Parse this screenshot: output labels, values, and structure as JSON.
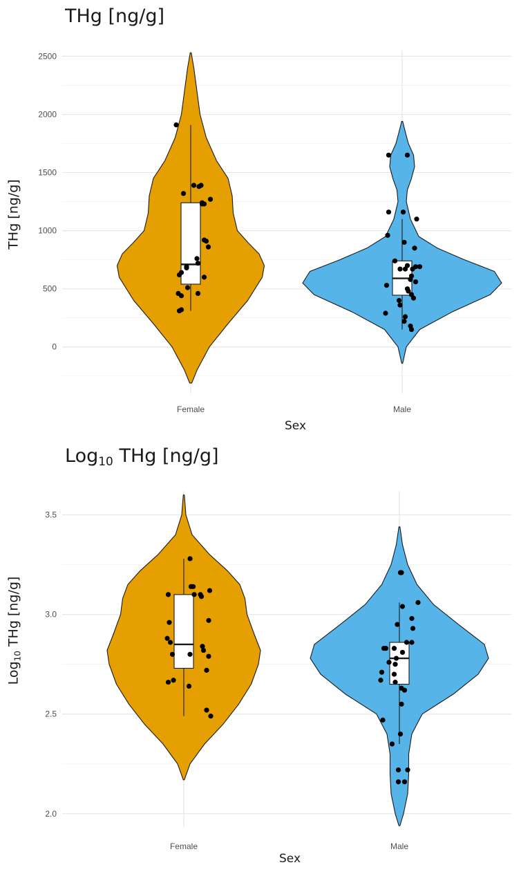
{
  "chart_data": [
    {
      "type": "violin",
      "title": "THg [ng/g]",
      "xlabel": "Sex",
      "ylabel": "THg [ng/g]",
      "categories": [
        "Female",
        "Male"
      ],
      "yticks": [
        0,
        500,
        1000,
        1500,
        2000,
        2500
      ],
      "ylim": [
        -400,
        2550
      ],
      "grid": true,
      "colors": {
        "Female": "#E69F00",
        "Male": "#56B4E9"
      },
      "violins": [
        {
          "category": "Female",
          "color": "#E69F00",
          "halfwidth": [
            -310,
            0.01,
            -200,
            0.06,
            0,
            0.18,
            200,
            0.36,
            400,
            0.55,
            600,
            0.69,
            700,
            0.71,
            800,
            0.66,
            900,
            0.55,
            1000,
            0.45,
            1150,
            0.41,
            1300,
            0.4,
            1450,
            0.36,
            1600,
            0.25,
            1800,
            0.15,
            2000,
            0.09,
            2200,
            0.06,
            2400,
            0.03,
            2530,
            0.005
          ]
        },
        {
          "category": "Male",
          "color": "#56B4E9",
          "halfwidth": [
            -140,
            0.005,
            0,
            0.04,
            150,
            0.17,
            300,
            0.48,
            450,
            0.85,
            550,
            0.96,
            650,
            0.89,
            750,
            0.6,
            850,
            0.34,
            950,
            0.16,
            1100,
            0.08,
            1250,
            0.04,
            1350,
            0.05,
            1450,
            0.09,
            1550,
            0.12,
            1650,
            0.11,
            1750,
            0.06,
            1850,
            0.03,
            1940,
            0.005
          ]
        }
      ],
      "boxes": [
        {
          "category": "Female",
          "q1": 540,
          "median": 710,
          "q3": 1240,
          "whisker_low": 310,
          "whisker_high": 1910
        },
        {
          "category": "Male",
          "q1": 445,
          "median": 590,
          "q3": 740,
          "whisker_low": 150,
          "whisker_high": 1100
        }
      ],
      "points": [
        {
          "category": "Female",
          "points": [
            [
              -0.14,
              1910
            ],
            [
              -0.07,
              1320
            ],
            [
              0.03,
              1390
            ],
            [
              0.13,
              1230
            ],
            [
              0.08,
              1380
            ],
            [
              0.1,
              1390
            ],
            [
              0.11,
              1240
            ],
            [
              0.11,
              1230
            ],
            [
              0.19,
              1270
            ],
            [
              0.13,
              920
            ],
            [
              0.15,
              910
            ],
            [
              0.17,
              860
            ],
            [
              0.06,
              760
            ],
            [
              -0.04,
              680
            ],
            [
              -0.11,
              620
            ],
            [
              0.07,
              720
            ],
            [
              0.13,
              600
            ],
            [
              -0.12,
              460
            ],
            [
              -0.09,
              440
            ],
            [
              -0.03,
              510
            ],
            [
              0.07,
              460
            ],
            [
              -0.09,
              320
            ],
            [
              -0.11,
              310
            ],
            [
              -0.09,
              640
            ],
            [
              -0.04,
              690
            ]
          ]
        },
        {
          "category": "Male",
          "points": [
            [
              0.05,
              1650
            ],
            [
              -0.13,
              1650
            ],
            [
              0.01,
              1160
            ],
            [
              -0.13,
              1160
            ],
            [
              0.14,
              1100
            ],
            [
              -0.14,
              960
            ],
            [
              0.02,
              900
            ],
            [
              -0.07,
              740
            ],
            [
              -0.02,
              670
            ],
            [
              0.03,
              670
            ],
            [
              0.05,
              700
            ],
            [
              0.12,
              850
            ],
            [
              0.13,
              690
            ],
            [
              0.17,
              690
            ],
            [
              0.1,
              670
            ],
            [
              0.08,
              580
            ],
            [
              0.09,
              610
            ],
            [
              0.06,
              480
            ],
            [
              0.09,
              450
            ],
            [
              -0.03,
              400
            ],
            [
              0.11,
              420
            ],
            [
              0.13,
              560
            ],
            [
              -0.15,
              530
            ],
            [
              -0.02,
              360
            ],
            [
              0.03,
              260
            ],
            [
              0.02,
              220
            ],
            [
              0.08,
              180
            ],
            [
              0.09,
              150
            ],
            [
              -0.16,
              290
            ],
            [
              0.05,
              500
            ]
          ]
        }
      ]
    },
    {
      "type": "violin",
      "title_base": "Log",
      "title_sub": "10",
      "title_rest": " THg [ng/g]",
      "xlabel": "Sex",
      "ylabel_base": "Log",
      "ylabel_sub": "10",
      "ylabel_rest": " THg [ng/g]",
      "categories": [
        "Female",
        "Male"
      ],
      "yticks": [
        2.0,
        2.5,
        3.0,
        3.5
      ],
      "ylim": [
        1.93,
        3.62
      ],
      "grid": true,
      "colors": {
        "Female": "#E69F00",
        "Male": "#56B4E9"
      },
      "violins": [
        {
          "category": "Female",
          "color": "#E69F00",
          "halfwidth": [
            2.17,
            0.005,
            2.25,
            0.06,
            2.35,
            0.2,
            2.45,
            0.38,
            2.55,
            0.53,
            2.65,
            0.65,
            2.75,
            0.72,
            2.82,
            0.74,
            2.9,
            0.68,
            3.0,
            0.61,
            3.08,
            0.59,
            3.15,
            0.54,
            3.22,
            0.42,
            3.3,
            0.25,
            3.4,
            0.08,
            3.5,
            0.02,
            3.6,
            0.005
          ]
        },
        {
          "category": "Male",
          "color": "#56B4E9",
          "halfwidth": [
            1.94,
            0.005,
            2.0,
            0.04,
            2.1,
            0.08,
            2.2,
            0.09,
            2.3,
            0.09,
            2.4,
            0.12,
            2.5,
            0.22,
            2.6,
            0.52,
            2.7,
            0.76,
            2.78,
            0.86,
            2.85,
            0.82,
            2.95,
            0.57,
            3.05,
            0.33,
            3.15,
            0.17,
            3.25,
            0.08,
            3.35,
            0.03,
            3.44,
            0.005
          ]
        }
      ],
      "boxes": [
        {
          "category": "Female",
          "q1": 2.73,
          "median": 2.85,
          "q3": 3.1,
          "whisker_low": 2.49,
          "whisker_high": 3.28
        },
        {
          "category": "Male",
          "q1": 2.65,
          "median": 2.78,
          "q3": 2.86,
          "whisker_low": 2.35,
          "whisker_high": 3.06
        }
      ],
      "points": [
        {
          "category": "Female",
          "points": [
            [
              -0.15,
              3.1
            ],
            [
              -0.14,
              2.96
            ],
            [
              -0.16,
              2.88
            ],
            [
              -0.13,
              2.86
            ],
            [
              -0.11,
              2.8
            ],
            [
              -0.15,
              2.66
            ],
            [
              -0.1,
              2.67
            ],
            [
              0.06,
              3.28
            ],
            [
              0.07,
              3.14
            ],
            [
              0.09,
              3.14
            ],
            [
              0.1,
              3.1
            ],
            [
              0.17,
              3.09
            ],
            [
              0.16,
              3.1
            ],
            [
              0.25,
              3.12
            ],
            [
              0.24,
              2.97
            ],
            [
              0.18,
              2.84
            ],
            [
              0.19,
              2.82
            ],
            [
              0.24,
              2.79
            ],
            [
              0.22,
              2.72
            ],
            [
              0.06,
              2.8
            ],
            [
              0.05,
              2.64
            ],
            [
              0.22,
              2.52
            ],
            [
              0.26,
              2.49
            ]
          ]
        },
        {
          "category": "Male",
          "points": [
            [
              -0.15,
              2.83
            ],
            [
              -0.13,
              2.83
            ],
            [
              -0.1,
              2.76
            ],
            [
              -0.17,
              2.71
            ],
            [
              -0.18,
              2.67
            ],
            [
              -0.05,
              2.83
            ],
            [
              -0.03,
              2.78
            ],
            [
              -0.05,
              2.7
            ],
            [
              -0.04,
              2.75
            ],
            [
              -0.04,
              2.66
            ],
            [
              -0.16,
              2.47
            ],
            [
              -0.07,
              2.35
            ],
            [
              0.01,
              3.21
            ],
            [
              0.02,
              3.21
            ],
            [
              -0.02,
              2.95
            ],
            [
              0.03,
              3.04
            ],
            [
              0.07,
              2.86
            ],
            [
              0.03,
              2.81
            ],
            [
              0.02,
              2.63
            ],
            [
              0.05,
              2.62
            ],
            [
              0.02,
              2.55
            ],
            [
              0.01,
              2.4
            ],
            [
              0.12,
              2.98
            ],
            [
              0.12,
              2.86
            ],
            [
              0.13,
              2.93
            ],
            [
              0.18,
              3.06
            ],
            [
              -0.01,
              2.22
            ],
            [
              -0.01,
              2.16
            ],
            [
              0.08,
              2.22
            ],
            [
              0.05,
              2.16
            ]
          ]
        }
      ]
    }
  ]
}
